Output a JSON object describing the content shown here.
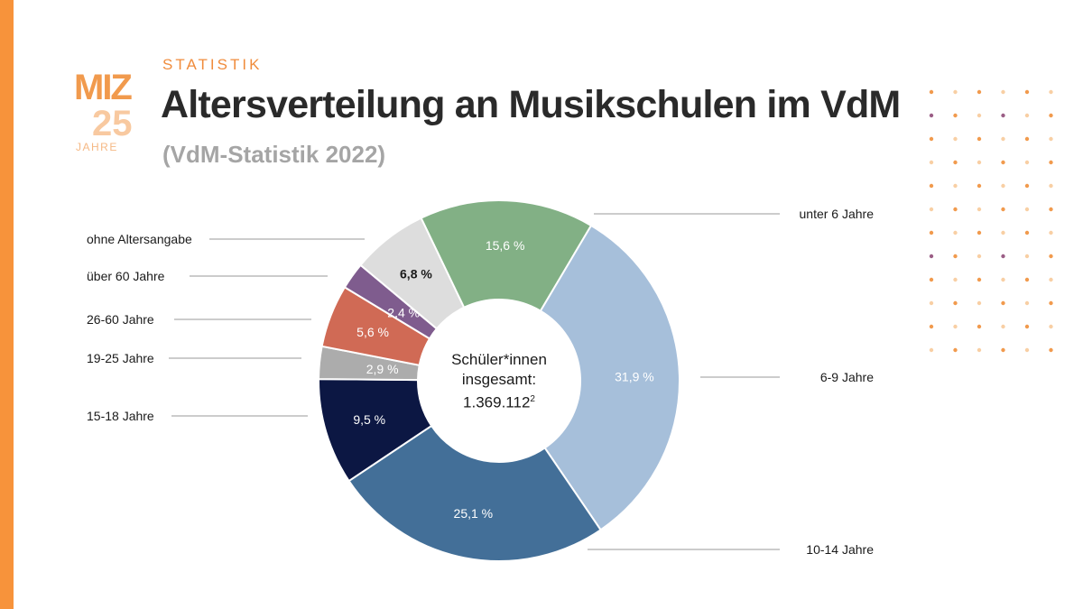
{
  "header": {
    "logo_text": "MIZ 25",
    "logo_sub": "JAHRE",
    "kicker": "STATISTIK",
    "title": "Altersverteilung an Musikschulen im VdM",
    "subtitle": "(VdM-Statistik 2022)"
  },
  "center": {
    "line1": "Schüler*innen",
    "line2": "insgesamt:",
    "value": "1.369.112",
    "footnote": "2"
  },
  "colors": {
    "accent": "#f7933b",
    "dot_orange": "#f19a4d",
    "dot_light": "#f8cfa4",
    "dot_purple": "#9b5e86"
  },
  "chart_data": {
    "type": "pie",
    "donut": true,
    "slices": [
      {
        "label": "unter 6 Jahre",
        "value": 15.6,
        "value_label": "15,6 %",
        "color": "#82b085",
        "text_color": "#ffffff"
      },
      {
        "label": "6-9 Jahre",
        "value": 31.9,
        "value_label": "31,9 %",
        "color": "#a6bfda",
        "text_color": "#ffffff"
      },
      {
        "label": "10-14 Jahre",
        "value": 25.1,
        "value_label": "25,1 %",
        "color": "#436f98",
        "text_color": "#ffffff"
      },
      {
        "label": "15-18 Jahre",
        "value": 9.5,
        "value_label": "9,5 %",
        "color": "#0c1743",
        "text_color": "#ffffff"
      },
      {
        "label": "19-25 Jahre",
        "value": 2.9,
        "value_label": "2,9 %",
        "color": "#acacac",
        "text_color": "#ffffff"
      },
      {
        "label": "26-60 Jahre",
        "value": 5.6,
        "value_label": "5,6 %",
        "color": "#d06a55",
        "text_color": "#ffffff"
      },
      {
        "label": "über 60 Jahre",
        "value": 2.4,
        "value_label": "2,4 %",
        "color": "#7f5c8e",
        "text_color": "#ffffff"
      },
      {
        "label": "ohne Altersangabe",
        "value": 6.8,
        "value_label": "6,8 %",
        "color": "#dddddd",
        "text_color": "#1a1a1a"
      }
    ]
  }
}
